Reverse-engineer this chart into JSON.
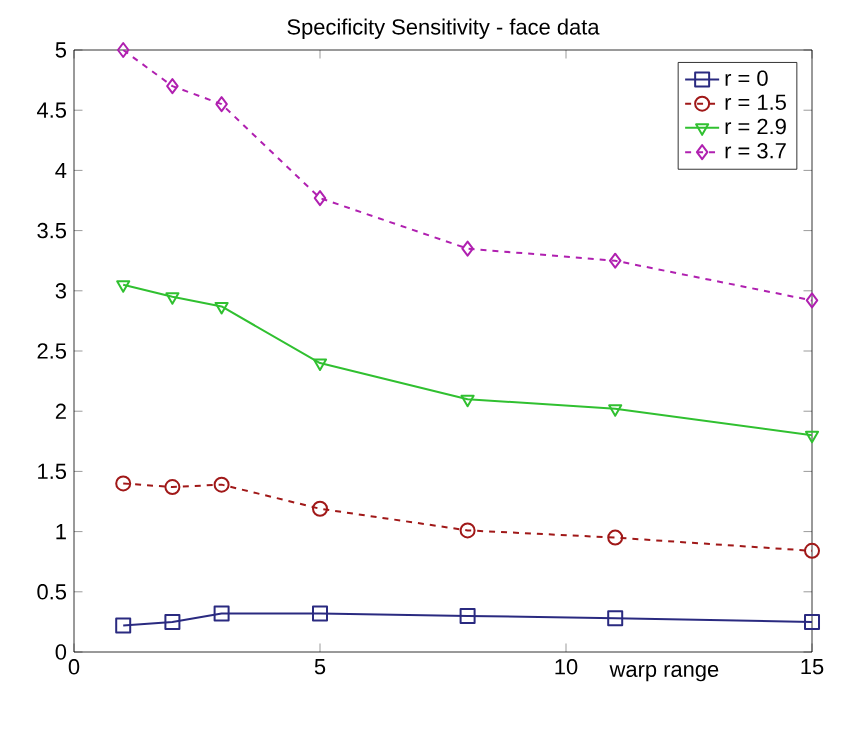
{
  "chart_data": {
    "type": "line",
    "title": "Specificity Sensitivity - face data",
    "xlabel": "warp range",
    "x": [
      1,
      2,
      3,
      5,
      8,
      11,
      15
    ],
    "xlim": [
      0,
      15
    ],
    "xticks": [
      0,
      5,
      10,
      15
    ],
    "ylim": [
      0,
      5
    ],
    "yticks": [
      0,
      0.5,
      1,
      1.5,
      2,
      2.5,
      3,
      3.5,
      4,
      4.5,
      5
    ],
    "legend": "top right",
    "grid": false,
    "series": [
      {
        "name": "r = 0",
        "color": "#2a2a80",
        "marker": "square",
        "line_style": "solid",
        "values": [
          0.22,
          0.25,
          0.32,
          0.32,
          0.3,
          0.28,
          0.25
        ]
      },
      {
        "name": "r = 1.5",
        "color": "#a01818",
        "marker": "circle",
        "line_style": "dashed",
        "values": [
          1.4,
          1.37,
          1.39,
          1.19,
          1.01,
          0.95,
          0.84
        ]
      },
      {
        "name": "r = 2.9",
        "color": "#30c030",
        "marker": "triangle",
        "line_style": "solid",
        "values": [
          3.05,
          2.95,
          2.87,
          2.4,
          2.1,
          2.02,
          1.8
        ]
      },
      {
        "name": "r = 3.7",
        "color": "#b020b0",
        "marker": "diamond",
        "line_style": "dashed",
        "values": [
          5.0,
          4.7,
          4.55,
          3.77,
          3.35,
          3.25,
          2.92
        ]
      }
    ]
  }
}
